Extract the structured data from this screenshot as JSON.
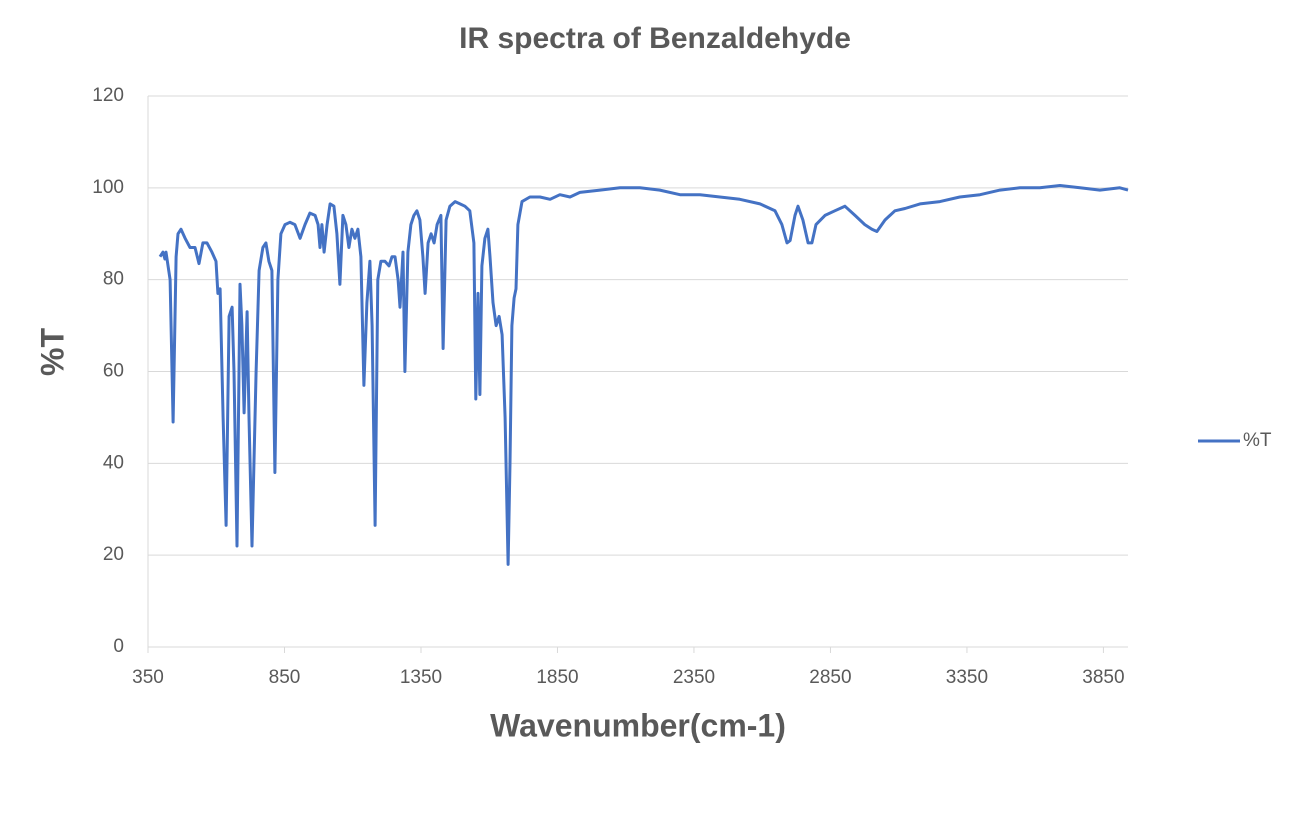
{
  "chart_data": {
    "type": "line",
    "title": "IR spectra of Benzaldehyde",
    "x_label": "Wavenumber(cm-1)",
    "y_label": "%T",
    "x": [
      394,
      405,
      412,
      416,
      431,
      442,
      453,
      460,
      471,
      486,
      504,
      522,
      537,
      551,
      566,
      584,
      599,
      606,
      614,
      625,
      636,
      647,
      658,
      665,
      676,
      687,
      694,
      702,
      713,
      720,
      731,
      746,
      757,
      771,
      782,
      793,
      804,
      815,
      826,
      837,
      852,
      870,
      888,
      907,
      925,
      943,
      962,
      973,
      980,
      987,
      995,
      1006,
      1017,
      1031,
      1042,
      1053,
      1064,
      1075,
      1086,
      1097,
      1108,
      1119,
      1130,
      1141,
      1152,
      1163,
      1171,
      1182,
      1192,
      1203,
      1218,
      1233,
      1244,
      1255,
      1266,
      1273,
      1284,
      1291,
      1302,
      1313,
      1324,
      1335,
      1346,
      1357,
      1365,
      1376,
      1387,
      1398,
      1409,
      1423,
      1431,
      1442,
      1456,
      1475,
      1493,
      1511,
      1529,
      1544,
      1551,
      1559,
      1566,
      1573,
      1584,
      1595,
      1603,
      1614,
      1625,
      1636,
      1647,
      1658,
      1669,
      1676,
      1683,
      1691,
      1698,
      1705,
      1720,
      1749,
      1786,
      1823,
      1859,
      1896,
      1932,
      2006,
      2079,
      2152,
      2225,
      2299,
      2372,
      2445,
      2518,
      2592,
      2647,
      2672,
      2691,
      2702,
      2720,
      2731,
      2749,
      2768,
      2782,
      2797,
      2830,
      2866,
      2903,
      2940,
      2976,
      3002,
      3020,
      3050,
      3086,
      3123,
      3178,
      3251,
      3324,
      3398,
      3471,
      3544,
      3617,
      3691,
      3764,
      3837,
      3910,
      3940
    ],
    "series": [
      {
        "name": "%T",
        "color": "#4472c4",
        "values": [
          85,
          86,
          84.5,
          86,
          80,
          49,
          85,
          90,
          91,
          89,
          87,
          87,
          83.5,
          88,
          88,
          86,
          84,
          77,
          78,
          50,
          26.5,
          72,
          74,
          60,
          22,
          79,
          70,
          51,
          73,
          50,
          22,
          60,
          82,
          87,
          88,
          84,
          82,
          38,
          80,
          90,
          92,
          92.5,
          92,
          89,
          92,
          94.5,
          94,
          92,
          87,
          92,
          86,
          92,
          96.5,
          96,
          90,
          79,
          94,
          92,
          87,
          91,
          89,
          91,
          85,
          57,
          75,
          84,
          70,
          26.5,
          80,
          84,
          84,
          83,
          85,
          85,
          80,
          74,
          86,
          60,
          86,
          92,
          94,
          95,
          93,
          85,
          77,
          88,
          90,
          88,
          92,
          94,
          65,
          93,
          96,
          97,
          96.5,
          96,
          95,
          88,
          54,
          77,
          55,
          83,
          89,
          91,
          85,
          75,
          70,
          72,
          68,
          50,
          18,
          40,
          70,
          76,
          78,
          92,
          97,
          98,
          98,
          97.5,
          98.5,
          98,
          99,
          99.5,
          100,
          100,
          99.5,
          98.5,
          98.5,
          98,
          97.5,
          96.5,
          95,
          92,
          88,
          88.5,
          94,
          96,
          93,
          88,
          88,
          92,
          94,
          95,
          96,
          94,
          92,
          91,
          90.5,
          93,
          95,
          95.5,
          96.5,
          97,
          98,
          98.5,
          99.5,
          100,
          100,
          100.5,
          100,
          99.5,
          100,
          99.5
        ]
      }
    ],
    "xlim": [
      350,
      3940
    ],
    "xticks": [
      350,
      850,
      1350,
      1850,
      2350,
      2850,
      3350,
      3850
    ],
    "ylim": [
      0,
      120
    ],
    "yticks": [
      0,
      20,
      40,
      60,
      80,
      100,
      120
    ],
    "grid": true,
    "legend": "right"
  }
}
